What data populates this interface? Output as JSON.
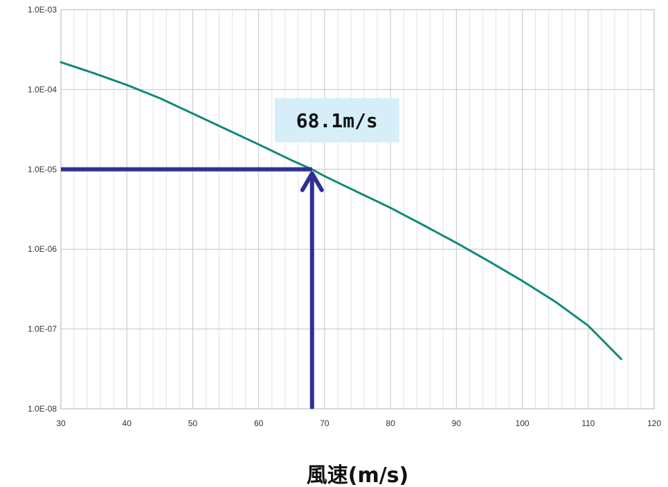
{
  "chart_data": {
    "type": "line",
    "title": "",
    "xlabel": "風速(m/s)",
    "ylabel": "",
    "xlim": [
      30,
      120
    ],
    "ylim": [
      1e-08,
      0.001
    ],
    "yscale": "log",
    "grid": true,
    "x_ticks": [
      "30",
      "40",
      "50",
      "60",
      "70",
      "80",
      "90",
      "100",
      "110",
      "120"
    ],
    "y_ticks": [
      "1.0E-03",
      "1.0E-04",
      "1.0E-05",
      "1.0E-06",
      "1.0E-07",
      "1.0E-08"
    ],
    "series": [
      {
        "color": "#0f8a78",
        "x": [
          30,
          35,
          40,
          45,
          50,
          55,
          60,
          65,
          68.1,
          70,
          75,
          80,
          85,
          90,
          95,
          100,
          105,
          110,
          115
        ],
        "y": [
          0.00022,
          0.00016,
          0.000114,
          7.8e-05,
          5e-05,
          3.2e-05,
          2.05e-05,
          1.3e-05,
          1e-05,
          8.2e-06,
          5.2e-06,
          3.3e-06,
          2e-06,
          1.2e-06,
          7e-07,
          4e-07,
          2.2e-07,
          1.1e-07,
          4.2e-08
        ]
      }
    ],
    "annotation": {
      "label": "68.1m/s",
      "x": 68.1,
      "y": 1e-05,
      "arrow_color": "#2e3192",
      "box_color": "#d6eef8"
    }
  }
}
